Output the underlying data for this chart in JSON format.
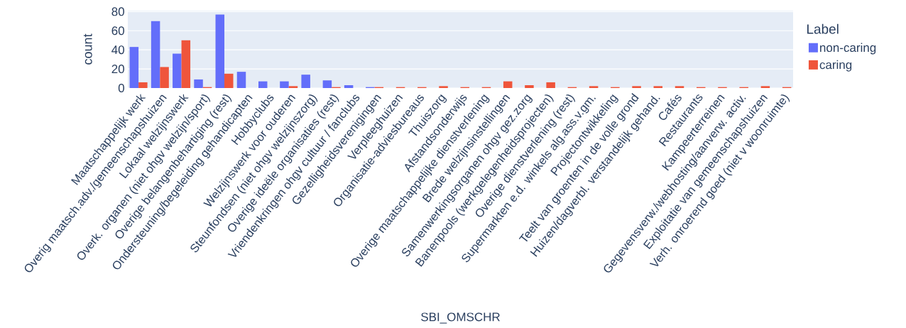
{
  "chart_data": {
    "type": "bar",
    "xlabel": "SBI_OMSCHR",
    "ylabel": "count",
    "legend_title": "Label",
    "categories": [
      "Maatschappelijk werk",
      "Overig maatsch.adv./gemeenschapshuizen",
      "Lokaal welzijnswerk",
      "Overk. organen (niet ohgv welzijn/sport)",
      "Overige belangenbehartiging (rest)",
      "Ondersteuning/begeleiding gehandicapten",
      "Hobbyclubs",
      "Welzijnswerk voor ouderen",
      "Steunfondsen (niet ohgv welzijnszorg)",
      "Overige ideële organisaties (rest)",
      "Vriendenkringen ohgv cultuur / fanclubs",
      "Gezelligheidsverenigingen",
      "Verpleeghuizen",
      "Organisatie-adviesbureaus",
      "Thuiszorg",
      "Afstandsonderwijs",
      "Overige maatschappelijke dienstverlening",
      "Brede welzijnsinstellingen",
      "Samenwerkingsorganen ohgv gez.zorg",
      "Banenpools (werkgelegenheidsprojecten)",
      "Overige dienstverlening (rest)",
      "Supermarkten e.d. winkels alg.ass.v.gm.",
      "Projectontwikkeling",
      "Teelt van groenten in de volle grond",
      "Huizen/dagverbl. verstandelijk gehand.",
      "Cafés",
      "Restaurants",
      "Kampeerterreinen",
      "Gegevensverw./webhosting/aanverw. activ.",
      "Exploitatie van gemeenschapshuizen",
      "Verh. onroerend goed (niet v woonruimte)"
    ],
    "series": [
      {
        "name": "non-caring",
        "color": "#636efa",
        "values": [
          43,
          70,
          36,
          9,
          77,
          17,
          7,
          7,
          14,
          8,
          3,
          1,
          null,
          null,
          null,
          null,
          null,
          null,
          null,
          null,
          null,
          null,
          null,
          null,
          null,
          null,
          null,
          null,
          null,
          null,
          null
        ]
      },
      {
        "name": "caring",
        "color": "#ef553b",
        "values": [
          6,
          22,
          50,
          1,
          15,
          null,
          null,
          2,
          null,
          1,
          null,
          1,
          1,
          1,
          2,
          1,
          1,
          7,
          3,
          6,
          1,
          2,
          1,
          2,
          2,
          2,
          1,
          1,
          1,
          2,
          1
        ]
      }
    ],
    "ylim": [
      0,
      81
    ],
    "yticks": [
      0,
      20,
      40,
      60,
      80
    ],
    "grid": "y",
    "legend": "right"
  }
}
